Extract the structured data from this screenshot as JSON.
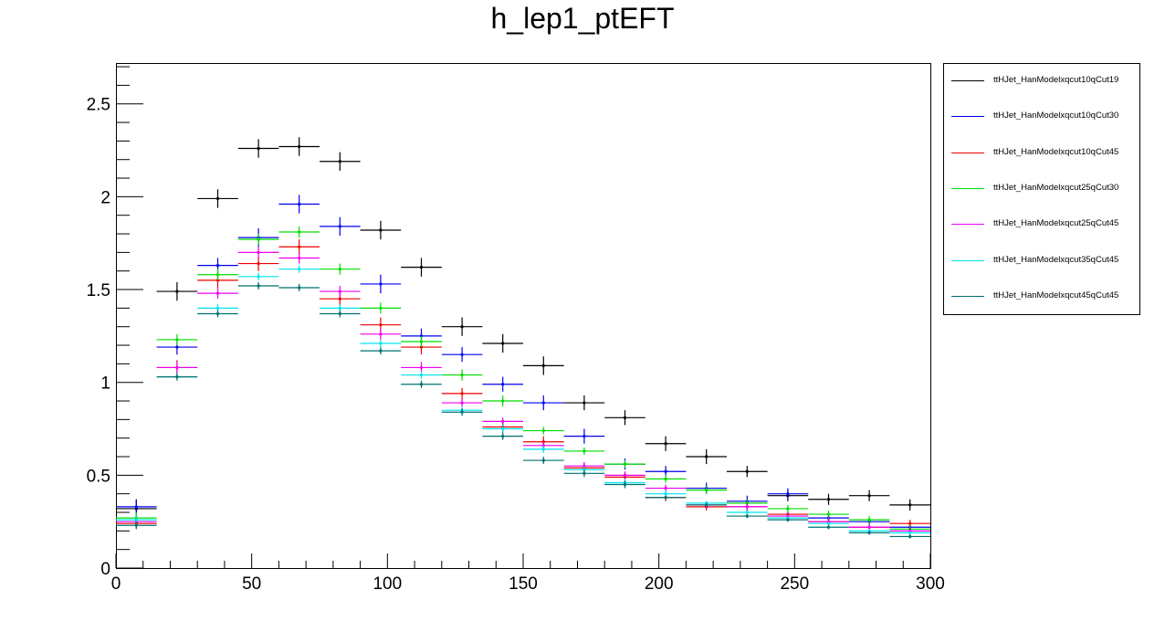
{
  "chart_data": {
    "type": "line",
    "title": "h_lep1_ptEFT",
    "xlabel": "",
    "ylabel": "",
    "xlim": [
      0,
      300
    ],
    "ylim": [
      0,
      2.72
    ],
    "x_ticks": [
      "0",
      "50",
      "100",
      "150",
      "200",
      "250",
      "300"
    ],
    "y_ticks": [
      "0",
      "0.5",
      "1",
      "1.5",
      "2",
      "2.5"
    ],
    "grid": false,
    "legend_position": "right",
    "bin_width": 15,
    "bin_centers": [
      7.5,
      22.5,
      37.5,
      52.5,
      67.5,
      82.5,
      97.5,
      112.5,
      127.5,
      142.5,
      157.5,
      172.5,
      187.5,
      202.5,
      217.5,
      232.5,
      247.5,
      262.5,
      277.5,
      292.5
    ],
    "series": [
      {
        "name": "ttHJet_HanModelxqcut10qCut19",
        "color": "#000000",
        "values": [
          0.32,
          1.49,
          1.99,
          2.26,
          2.27,
          2.19,
          1.82,
          1.62,
          1.3,
          1.21,
          1.09,
          0.89,
          0.81,
          0.67,
          0.6,
          0.52,
          0.39,
          0.37,
          0.39,
          0.34
        ],
        "errors": [
          0.05,
          0.05,
          0.05,
          0.05,
          0.05,
          0.05,
          0.05,
          0.05,
          0.05,
          0.05,
          0.05,
          0.04,
          0.04,
          0.04,
          0.04,
          0.03,
          0.03,
          0.03,
          0.03,
          0.03
        ]
      },
      {
        "name": "ttHJet_HanModelxqcut10qCut30",
        "color": "#0000ee",
        "values": [
          0.33,
          1.19,
          1.63,
          1.78,
          1.96,
          1.84,
          1.53,
          1.25,
          1.15,
          0.99,
          0.89,
          0.71,
          0.56,
          0.52,
          0.43,
          0.36,
          0.4,
          0.27,
          0.25,
          0.22
        ],
        "errors": [
          0.04,
          0.04,
          0.04,
          0.05,
          0.05,
          0.05,
          0.05,
          0.04,
          0.04,
          0.04,
          0.04,
          0.04,
          0.03,
          0.03,
          0.03,
          0.03,
          0.03,
          0.03,
          0.02,
          0.02
        ]
      },
      {
        "name": "ttHJet_HanModelxqcut10qCut45",
        "color": "#ee0000",
        "values": [
          0.24,
          1.08,
          1.55,
          1.64,
          1.73,
          1.45,
          1.31,
          1.19,
          0.94,
          0.76,
          0.68,
          0.54,
          0.49,
          0.38,
          0.33,
          0.33,
          0.29,
          0.25,
          0.22,
          0.24
        ],
        "errors": [
          0.03,
          0.04,
          0.04,
          0.04,
          0.04,
          0.04,
          0.04,
          0.04,
          0.03,
          0.03,
          0.03,
          0.03,
          0.03,
          0.02,
          0.02,
          0.02,
          0.02,
          0.02,
          0.02,
          0.02
        ]
      },
      {
        "name": "ttHJet_HanModelxqcut25qCut30",
        "color": "#00dd00",
        "values": [
          0.27,
          1.23,
          1.58,
          1.77,
          1.81,
          1.61,
          1.4,
          1.22,
          1.04,
          0.9,
          0.74,
          0.63,
          0.56,
          0.48,
          0.42,
          0.35,
          0.32,
          0.29,
          0.26,
          0.21
        ],
        "errors": [
          0.03,
          0.03,
          0.03,
          0.03,
          0.03,
          0.03,
          0.03,
          0.03,
          0.03,
          0.03,
          0.02,
          0.02,
          0.02,
          0.02,
          0.02,
          0.02,
          0.02,
          0.02,
          0.02,
          0.02
        ]
      },
      {
        "name": "ttHJet_HanModelxqcut25qCut45",
        "color": "#ee00ee",
        "values": [
          0.25,
          1.08,
          1.48,
          1.7,
          1.67,
          1.49,
          1.26,
          1.08,
          0.89,
          0.79,
          0.66,
          0.55,
          0.5,
          0.43,
          0.34,
          0.33,
          0.28,
          0.25,
          0.22,
          0.2
        ],
        "errors": [
          0.02,
          0.03,
          0.03,
          0.03,
          0.03,
          0.03,
          0.03,
          0.03,
          0.02,
          0.02,
          0.02,
          0.02,
          0.02,
          0.02,
          0.02,
          0.02,
          0.02,
          0.02,
          0.02,
          0.02
        ]
      },
      {
        "name": "ttHJet_HanModelxqcut35qCut45",
        "color": "#00e5ee",
        "values": [
          0.26,
          1.03,
          1.4,
          1.57,
          1.61,
          1.4,
          1.21,
          1.04,
          0.85,
          0.75,
          0.64,
          0.53,
          0.46,
          0.4,
          0.35,
          0.3,
          0.27,
          0.24,
          0.2,
          0.19
        ],
        "errors": [
          0.02,
          0.02,
          0.02,
          0.02,
          0.02,
          0.02,
          0.02,
          0.02,
          0.02,
          0.02,
          0.02,
          0.02,
          0.02,
          0.02,
          0.01,
          0.01,
          0.01,
          0.01,
          0.01,
          0.01
        ]
      },
      {
        "name": "ttHJet_HanModelxqcut45qCut45",
        "color": "#007070",
        "values": [
          0.23,
          1.03,
          1.37,
          1.52,
          1.51,
          1.37,
          1.17,
          0.99,
          0.84,
          0.71,
          0.58,
          0.51,
          0.45,
          0.38,
          0.34,
          0.28,
          0.26,
          0.22,
          0.19,
          0.17
        ],
        "errors": [
          0.02,
          0.02,
          0.02,
          0.02,
          0.02,
          0.02,
          0.02,
          0.02,
          0.02,
          0.02,
          0.02,
          0.02,
          0.02,
          0.01,
          0.01,
          0.01,
          0.01,
          0.01,
          0.01,
          0.01
        ]
      }
    ]
  }
}
